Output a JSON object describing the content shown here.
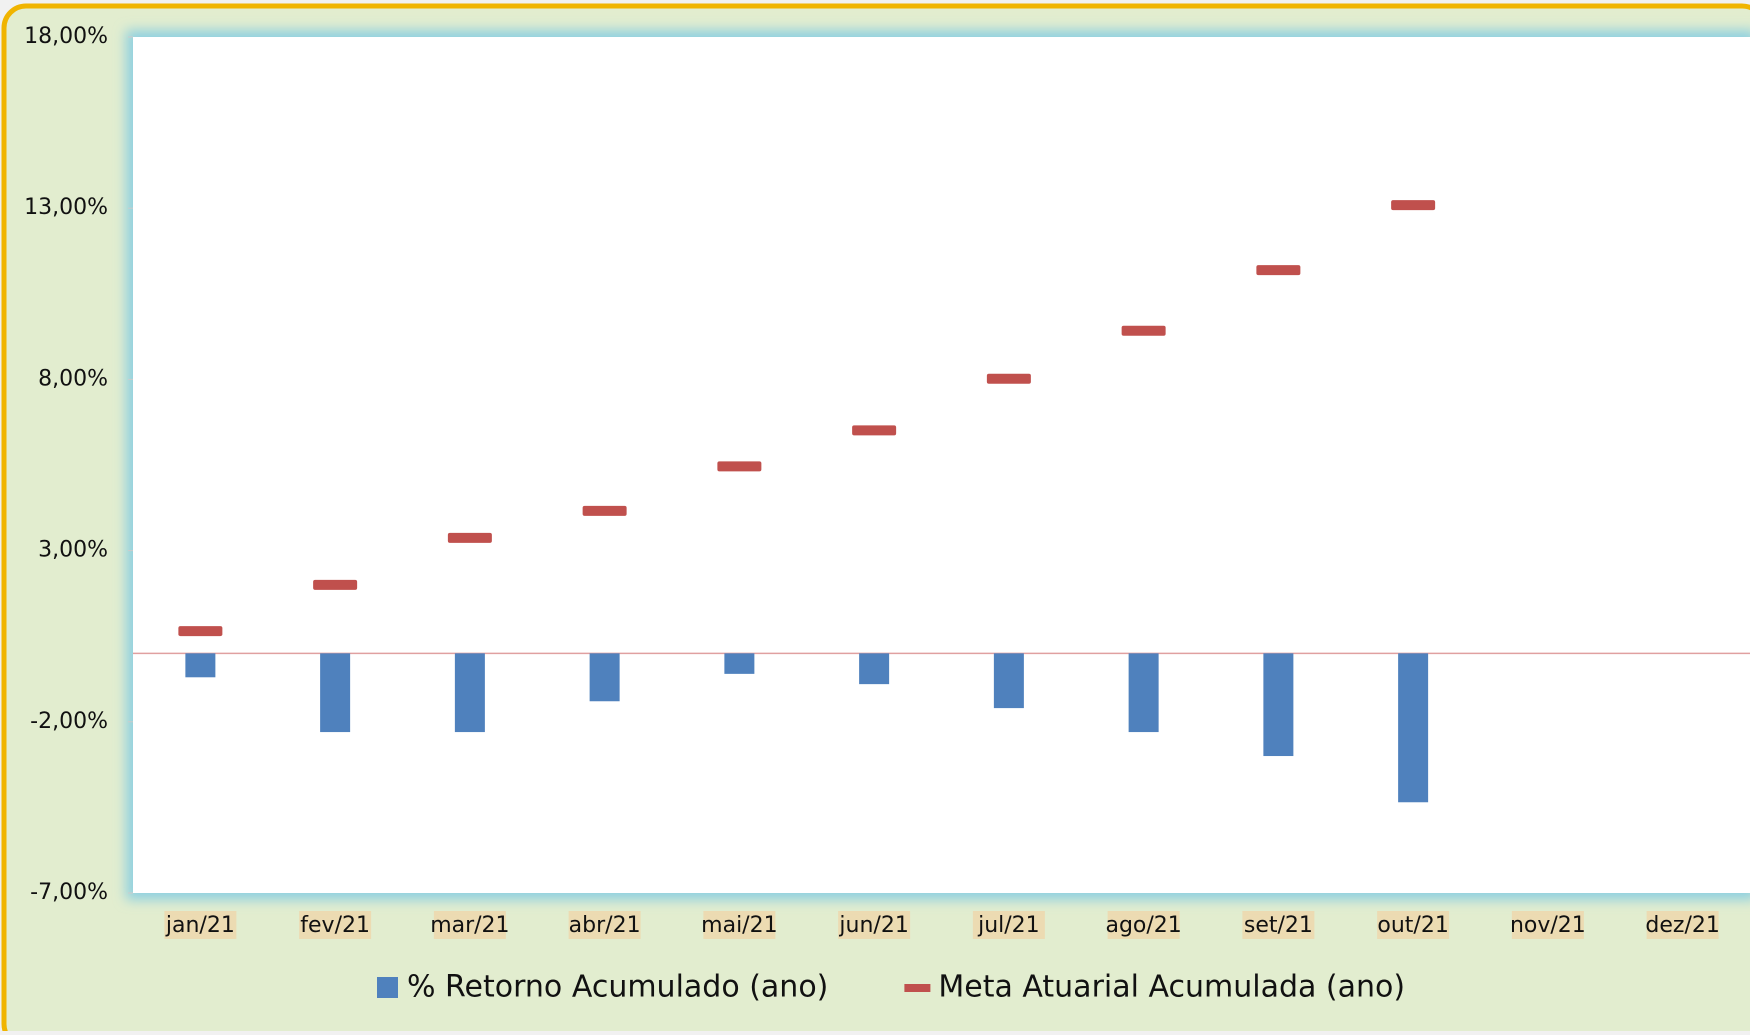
{
  "chart_data": {
    "type": "bar",
    "categories": [
      "jan/21",
      "fev/21",
      "mar/21",
      "abr/21",
      "mai/21",
      "jun/21",
      "jul/21",
      "ago/21",
      "set/21",
      "out/21",
      "nov/21",
      "dez/21"
    ],
    "series": [
      {
        "name": "% Retorno Acumulado (ano)",
        "type": "bar",
        "color": "#4f81bd",
        "values": [
          -0.7,
          -2.3,
          -2.3,
          -1.4,
          -0.6,
          -0.9,
          -1.6,
          -2.3,
          -3.0,
          -4.35,
          null,
          null
        ]
      },
      {
        "name": "Meta Atuarial Acumulada (ano)",
        "type": "dash",
        "color": "#c0504d",
        "values": [
          0.65,
          2.0,
          3.37,
          4.16,
          5.46,
          6.51,
          8.02,
          9.42,
          11.19,
          13.09,
          null,
          null
        ]
      }
    ],
    "ylim": [
      -7,
      18
    ],
    "yticks": [
      {
        "value": 18,
        "label": "18,00%"
      },
      {
        "value": 13,
        "label": "13,00%"
      },
      {
        "value": 8,
        "label": "8,00%"
      },
      {
        "value": 3,
        "label": "3,00%"
      },
      {
        "value": -2,
        "label": "-2,00%"
      },
      {
        "value": -7,
        "label": "-7,00%"
      }
    ],
    "legend": "bottom"
  }
}
